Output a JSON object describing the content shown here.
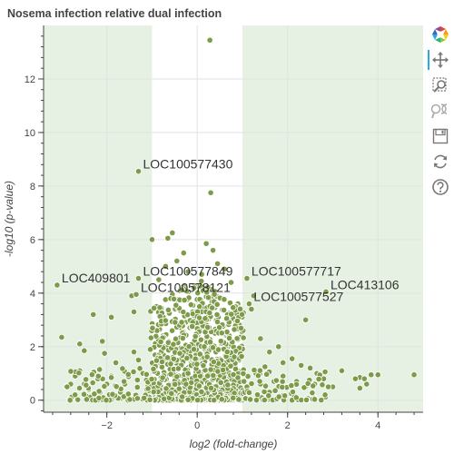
{
  "chart": {
    "title": "Nosema infection relative dual infection"
  },
  "chart_data": {
    "type": "scatter",
    "title": "Nosema infection relative dual infection",
    "xlabel": "log2 (fold-change)",
    "ylabel": "-log10 (p-value)",
    "xlim": [
      -3.4,
      5.0
    ],
    "ylim": [
      -0.45,
      14.0
    ],
    "x_ticks": [
      -2,
      0,
      2,
      4
    ],
    "y_ticks": [
      0,
      2,
      4,
      6,
      8,
      10,
      12
    ],
    "x_minor_step": 0.4,
    "y_minor_step": 0.4,
    "grid": true,
    "point_color": "#7d9b49",
    "point_edge_color": "#ffffff",
    "significance_band": {
      "x_low": -1,
      "x_high": 1,
      "shade_color": "#e6f1e3"
    },
    "labeled_points": [
      {
        "gene": "LOC100577430",
        "x": -1.3,
        "y": 8.55
      },
      {
        "gene": "LOC409801",
        "x": -3.1,
        "y": 4.3
      },
      {
        "gene": "LOC100577849",
        "x": -1.3,
        "y": 4.55
      },
      {
        "gene": "LOC100578121",
        "x": -1.35,
        "y": 3.95
      },
      {
        "gene": "LOC100577717",
        "x": 1.1,
        "y": 4.55
      },
      {
        "gene": "LOC413106",
        "x": 2.85,
        "y": 4.05
      },
      {
        "gene": "LOC100577527",
        "x": 1.15,
        "y": 3.6
      }
    ],
    "points": [
      [
        0.28,
        13.45
      ],
      [
        0.3,
        7.75
      ],
      [
        -0.55,
        6.25
      ],
      [
        -0.65,
        6.05
      ],
      [
        -1.0,
        6.0
      ],
      [
        -0.3,
        5.5
      ],
      [
        0.2,
        5.85
      ],
      [
        0.35,
        5.6
      ],
      [
        -0.45,
        5.2
      ],
      [
        0.45,
        5.1
      ],
      [
        -0.7,
        5.0
      ],
      [
        0.6,
        4.9
      ],
      [
        -0.2,
        4.8
      ],
      [
        0.1,
        4.7
      ],
      [
        -0.85,
        4.5
      ],
      [
        0.75,
        4.4
      ],
      [
        -1.45,
        3.9
      ],
      [
        1.25,
        3.9
      ],
      [
        1.2,
        3.4
      ],
      [
        -1.4,
        3.3
      ],
      [
        -0.9,
        3.5
      ],
      [
        0.9,
        3.6
      ],
      [
        -2.3,
        3.2
      ],
      [
        -1.9,
        3.1
      ],
      [
        2.4,
        3.0
      ],
      [
        -2.1,
        2.2
      ],
      [
        -3.0,
        2.35
      ],
      [
        -2.6,
        2.1
      ],
      [
        -2.5,
        1.85
      ],
      [
        -2.05,
        1.75
      ],
      [
        -1.4,
        1.8
      ],
      [
        -1.8,
        1.4
      ],
      [
        -1.3,
        1.5
      ],
      [
        1.4,
        2.3
      ],
      [
        1.8,
        2.0
      ],
      [
        1.6,
        1.8
      ],
      [
        1.9,
        1.4
      ],
      [
        2.1,
        1.55
      ],
      [
        2.3,
        1.3
      ],
      [
        2.5,
        1.2
      ],
      [
        1.5,
        1.25
      ],
      [
        2.65,
        1.0
      ],
      [
        2.8,
        0.8
      ],
      [
        3.2,
        1.1
      ],
      [
        3.0,
        0.5
      ],
      [
        2.9,
        0.5
      ],
      [
        3.6,
        0.85
      ],
      [
        3.7,
        0.8
      ],
      [
        3.75,
        0.6
      ],
      [
        3.6,
        0.45
      ],
      [
        3.85,
        0.95
      ],
      [
        3.5,
        0.8
      ],
      [
        4.0,
        0.95
      ],
      [
        4.8,
        0.95
      ],
      [
        -2.7,
        0.9
      ],
      [
        -2.2,
        0.8
      ],
      [
        -2.8,
        0.6
      ],
      [
        -2.9,
        0.5
      ],
      [
        -2.4,
        0.4
      ],
      [
        -2.5,
        0.6
      ],
      [
        -2.3,
        1.05
      ],
      [
        -2.6,
        1.1
      ],
      [
        -2.0,
        0.6
      ],
      [
        -1.9,
        0.9
      ],
      [
        -1.7,
        0.3
      ],
      [
        -1.6,
        0.6
      ],
      [
        -2.15,
        0.3
      ],
      [
        -1.5,
        0.9
      ],
      [
        -1.2,
        1.0
      ],
      [
        -1.1,
        0.5
      ],
      [
        1.1,
        0.5
      ],
      [
        1.3,
        1.0
      ],
      [
        1.7,
        0.7
      ],
      [
        1.9,
        0.9
      ],
      [
        2.0,
        0.5
      ],
      [
        2.2,
        0.7
      ],
      [
        2.4,
        0.5
      ],
      [
        2.6,
        0.6
      ],
      [
        1.4,
        0.6
      ],
      [
        1.6,
        0.3
      ],
      [
        -0.3,
        4.25
      ],
      [
        0.3,
        4.15
      ],
      [
        -0.55,
        3.95
      ],
      [
        0.55,
        3.8
      ],
      [
        -0.1,
        3.3
      ],
      [
        0.1,
        3.3
      ],
      [
        -0.75,
        3.1
      ],
      [
        0.8,
        3.05
      ],
      [
        -0.35,
        2.7
      ],
      [
        0.4,
        2.65
      ],
      [
        -0.9,
        2.4
      ],
      [
        0.95,
        2.35
      ],
      [
        -0.6,
        2.1
      ],
      [
        0.65,
        2.0
      ],
      [
        -0.2,
        2.0
      ],
      [
        0.2,
        1.9
      ],
      [
        0.05,
        0.15
      ],
      [
        -0.05,
        0.2
      ],
      [
        0.12,
        0.3
      ],
      [
        -0.12,
        0.35
      ]
    ]
  },
  "toolbar": {
    "items": [
      {
        "name": "bokeh-logo",
        "title": "Bokeh"
      },
      {
        "name": "pan-tool",
        "title": "Pan"
      },
      {
        "name": "box-zoom-tool",
        "title": "Box Zoom"
      },
      {
        "name": "wheel-zoom-tool",
        "title": "Wheel Zoom"
      },
      {
        "name": "save-tool",
        "title": "Save"
      },
      {
        "name": "reset-tool",
        "title": "Reset"
      },
      {
        "name": "help-tool",
        "title": "Help"
      }
    ]
  }
}
